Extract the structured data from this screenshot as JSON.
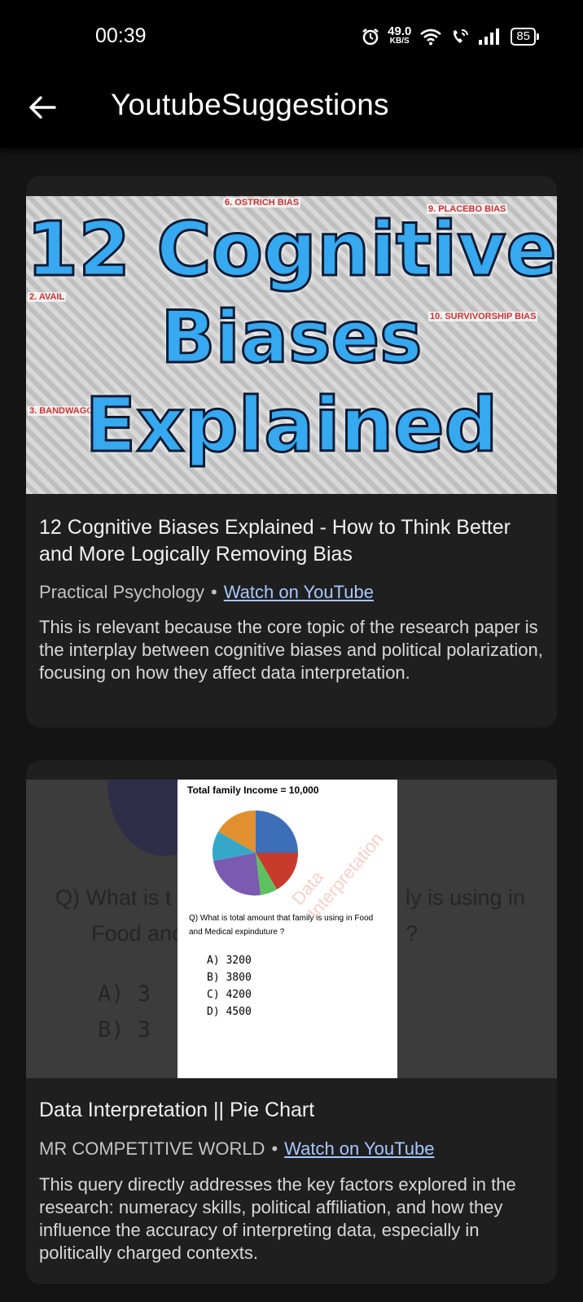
{
  "status_bar": {
    "time": "00:39",
    "net_speed_value": "49.0",
    "net_speed_unit": "KB/S",
    "battery": "85"
  },
  "app_bar": {
    "title": "YoutubeSuggestions"
  },
  "cards": [
    {
      "thumbnail": {
        "line1": "12 Cognitive",
        "line2": "Biases",
        "line3": "Explained",
        "tags": [
          "6. OSTRICH BIAS",
          "9. PLACEBO BIAS",
          "10. SURVIVORSHIP BIAS",
          "3. BANDWAGON",
          "2. AVAIL"
        ]
      },
      "title": "12 Cognitive Biases Explained - How to Think Better and More Logically Removing Bias",
      "channel": "Practical Psychology",
      "link_label": "Watch on YouTube",
      "description": "This is relevant because the core topic of the research paper is the interplay between cognitive biases and political polarization, focusing on how they affect data interpretation."
    },
    {
      "thumbnail": {
        "paper_title": "Total family Income  = 10,000",
        "question": "Q) What is total amount that family is using in Food and Medical expinduture ?",
        "options": [
          "A)  3200",
          "B)  3800",
          "C)  4200",
          "D)  4500"
        ],
        "watermark": "Data Interpretation",
        "side_left_1": "Q) What is t",
        "side_left_2": "Food anc",
        "side_right_1": "ly is using in",
        "side_right_2": "?",
        "side_opt_a": "A)  3",
        "side_opt_b": "B)  3"
      },
      "title": "Data Interpretation || Pie Chart",
      "channel": "MR COMPETITIVE WORLD",
      "link_label": "Watch on YouTube",
      "description": "This query directly addresses the key factors explored in the research: numeracy skills, political affiliation, and how they influence the accuracy of interpreting data, especially in politically charged contexts."
    }
  ],
  "colors": {
    "background": "#141414",
    "card": "#1f1f1f",
    "link": "#a9c7ff"
  }
}
